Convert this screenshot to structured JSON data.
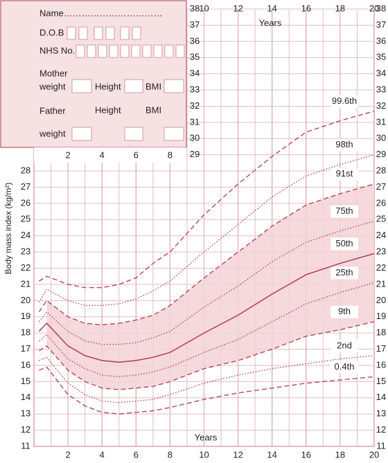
{
  "form": {
    "name": "Name……………………………",
    "dob": "D.O.B",
    "nhs": "NHS No.",
    "mother": "Mother",
    "father": "Father",
    "weight": "weight",
    "height": "Height",
    "bmi": "BMI"
  },
  "chart_data": {
    "type": "line",
    "y_label": "Body mass index (kg/m²)",
    "x_label": "Years",
    "x": [
      0.3,
      0.75,
      2,
      3,
      4,
      5,
      6,
      7,
      8,
      10,
      12,
      14,
      16,
      18,
      20
    ],
    "xlim": [
      0,
      20
    ],
    "xticks": [
      2,
      4,
      6,
      8,
      10,
      12,
      14,
      16,
      18,
      20
    ],
    "ylim": [
      11,
      38
    ],
    "yticks": [
      11,
      12,
      13,
      14,
      15,
      16,
      17,
      18,
      19,
      20,
      21,
      22,
      23,
      24,
      25,
      26,
      27,
      28,
      29,
      30,
      31,
      32,
      33,
      34,
      35,
      36,
      37,
      38
    ],
    "grid": true,
    "series": [
      {
        "name": "99.6th",
        "color": "#b5455a",
        "dash": "dashed",
        "values": [
          21.2,
          21.5,
          21.0,
          20.8,
          20.8,
          21.0,
          21.4,
          22.3,
          23.0,
          25.3,
          27.2,
          28.9,
          30.4,
          31.1,
          31.7
        ]
      },
      {
        "name": "98th",
        "color": "#b5455a",
        "dash": "dotted",
        "values": [
          19.9,
          20.7,
          20.0,
          19.7,
          19.7,
          19.8,
          20.1,
          20.6,
          21.2,
          23.0,
          24.7,
          26.4,
          27.7,
          28.4,
          29.0
        ]
      },
      {
        "name": "91st",
        "color": "#b5455a",
        "dash": "dashed",
        "values": [
          19.3,
          20.0,
          19.0,
          18.6,
          18.5,
          18.6,
          18.8,
          19.1,
          19.7,
          21.4,
          23.0,
          24.6,
          25.9,
          26.6,
          27.2
        ]
      },
      {
        "name": "75th",
        "color": "#b5455a",
        "dash": "dotted",
        "values": [
          18.7,
          19.3,
          18.1,
          17.5,
          17.3,
          17.3,
          17.4,
          17.7,
          18.1,
          19.6,
          20.9,
          22.4,
          23.6,
          24.3,
          24.9
        ]
      },
      {
        "name": "50th",
        "color": "#b5455a",
        "dash": "solid",
        "values": [
          18.1,
          18.6,
          17.2,
          16.6,
          16.3,
          16.2,
          16.3,
          16.5,
          16.8,
          18.0,
          19.1,
          20.4,
          21.6,
          22.3,
          22.9
        ]
      },
      {
        "name": "25th",
        "color": "#b5455a",
        "dash": "dotted",
        "values": [
          17.5,
          17.9,
          16.4,
          15.8,
          15.4,
          15.3,
          15.4,
          15.6,
          15.9,
          16.8,
          17.6,
          18.7,
          19.8,
          20.5,
          21.1
        ]
      },
      {
        "name": "9th",
        "color": "#b5455a",
        "dash": "dashed",
        "values": [
          16.9,
          17.2,
          15.7,
          15.0,
          14.6,
          14.5,
          14.6,
          14.7,
          15.0,
          15.8,
          16.3,
          17.0,
          17.8,
          18.2,
          18.7
        ]
      },
      {
        "name": "2nd",
        "color": "#b5455a",
        "dash": "dotted",
        "values": [
          16.3,
          16.5,
          14.9,
          14.2,
          13.8,
          13.7,
          13.8,
          13.9,
          14.2,
          14.9,
          15.4,
          15.8,
          16.1,
          16.4,
          16.6
        ]
      },
      {
        "name": "0.4th",
        "color": "#b5455a",
        "dash": "dashed",
        "values": [
          15.7,
          15.9,
          14.2,
          13.5,
          13.1,
          13.0,
          13.1,
          13.2,
          13.4,
          13.9,
          14.3,
          14.6,
          14.9,
          15.1,
          15.3
        ]
      }
    ]
  }
}
